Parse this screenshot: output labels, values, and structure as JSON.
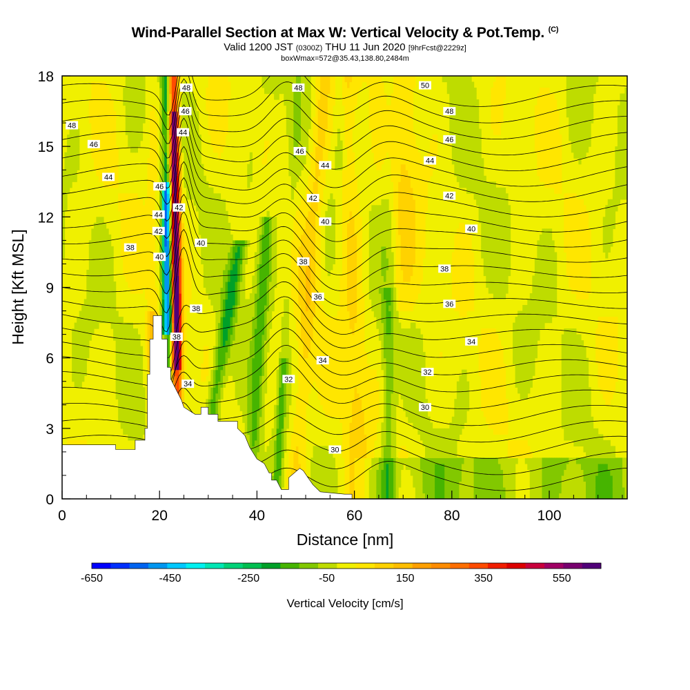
{
  "title_main": "Wind-Parallel Section at Max W: Vertical Velocity & Pot.Temp.",
  "title_mark": "(C)",
  "subtitle_a": "Valid 1200 JST",
  "subtitle_b": "(0300Z)",
  "subtitle_c": "THU 11 Jun 2020",
  "subtitle_d": "[9hrFcst@2229z]",
  "subtitle_line3": "boxWmax=572@35.43,138.80,2484m",
  "chart_data": {
    "type": "contour-section",
    "xlabel": "Distance [nm]",
    "ylabel": "Height [Kft MSL]",
    "xlim": [
      0,
      116
    ],
    "ylim": [
      0,
      18
    ],
    "x_ticks": [
      "0",
      "20",
      "40",
      "60",
      "80",
      "100"
    ],
    "x_tick_values": [
      0,
      20,
      40,
      60,
      80,
      100
    ],
    "y_ticks": [
      "0",
      "3",
      "6",
      "9",
      "12",
      "15",
      "18"
    ],
    "y_tick_values": [
      0,
      3,
      6,
      9,
      12,
      15,
      18
    ],
    "colorbar": {
      "title": "Vertical Velocity [cm/s]",
      "min": -650,
      "max": 650,
      "step": 50,
      "labels": [
        "-650",
        "-450",
        "-250",
        "-50",
        "150",
        "350",
        "550"
      ],
      "label_values": [
        -650,
        -450,
        -250,
        -50,
        150,
        350,
        550
      ],
      "colors": [
        "#0000ff",
        "#0030ff",
        "#0064f0",
        "#0096f0",
        "#00c8ff",
        "#00f0f0",
        "#00e6b4",
        "#00d278",
        "#00be50",
        "#00a028",
        "#46b400",
        "#82c800",
        "#bedc00",
        "#f0f000",
        "#ffe600",
        "#ffd200",
        "#ffbe00",
        "#ffa000",
        "#ff8c00",
        "#ff6e00",
        "#ff4b00",
        "#f01e00",
        "#dc0000",
        "#c8003c",
        "#a00064",
        "#78006e",
        "#500078"
      ]
    },
    "terrain_kft": [
      [
        0,
        2.3
      ],
      [
        10,
        2.3
      ],
      [
        11,
        2.3
      ],
      [
        11,
        2.1
      ],
      [
        15,
        2.1
      ],
      [
        15,
        2.5
      ],
      [
        17,
        2.5
      ],
      [
        17,
        3.0
      ],
      [
        17.5,
        3.0
      ],
      [
        17.5,
        5.3
      ],
      [
        18,
        5.3
      ],
      [
        18,
        6.8
      ],
      [
        18.7,
        6.8
      ],
      [
        18.7,
        7.8
      ],
      [
        20.5,
        7.8
      ],
      [
        20.5,
        6.8
      ],
      [
        21.6,
        6.8
      ],
      [
        21.6,
        5.6
      ],
      [
        22.3,
        5.6
      ],
      [
        22.3,
        5.1
      ],
      [
        24.5,
        4.2
      ],
      [
        25,
        3.9
      ],
      [
        27.3,
        3.6
      ],
      [
        28.5,
        3.6
      ],
      [
        28.5,
        3.9
      ],
      [
        30,
        3.9
      ],
      [
        30,
        3.6
      ],
      [
        32,
        3.6
      ],
      [
        32,
        3.3
      ],
      [
        36,
        3.3
      ],
      [
        36,
        3.0
      ],
      [
        37.5,
        2.7
      ],
      [
        38.5,
        2.2
      ],
      [
        40,
        1.7
      ],
      [
        41.5,
        1.5
      ],
      [
        42.5,
        1.1
      ],
      [
        43,
        1.1
      ],
      [
        43,
        0.8
      ],
      [
        44,
        0.8
      ],
      [
        45,
        0.4
      ],
      [
        46.5,
        0.4
      ],
      [
        46.5,
        0.9
      ],
      [
        48.8,
        1.3
      ],
      [
        49.5,
        1.2
      ],
      [
        50.5,
        0.9
      ],
      [
        51.5,
        0.6
      ],
      [
        53,
        0.3
      ],
      [
        58,
        0.2
      ],
      [
        59.5,
        0.2
      ],
      [
        59.5,
        0.0
      ]
    ],
    "theta_contour_labels": [
      {
        "x": 2,
        "y": 15.9,
        "t": "48"
      },
      {
        "x": 6.5,
        "y": 15.1,
        "t": "46"
      },
      {
        "x": 9.5,
        "y": 13.7,
        "t": "44"
      },
      {
        "x": 14,
        "y": 10.7,
        "t": "38"
      },
      {
        "x": 25.5,
        "y": 17.5,
        "t": "48"
      },
      {
        "x": 25.3,
        "y": 16.5,
        "t": "46"
      },
      {
        "x": 24.8,
        "y": 15.6,
        "t": "44"
      },
      {
        "x": 20,
        "y": 13.3,
        "t": "46"
      },
      {
        "x": 19.8,
        "y": 12.1,
        "t": "44"
      },
      {
        "x": 19.8,
        "y": 11.4,
        "t": "42"
      },
      {
        "x": 20,
        "y": 10.3,
        "t": "40"
      },
      {
        "x": 24,
        "y": 12.4,
        "t": "42"
      },
      {
        "x": 28.5,
        "y": 10.9,
        "t": "40"
      },
      {
        "x": 27.5,
        "y": 8.1,
        "t": "38"
      },
      {
        "x": 23.5,
        "y": 6.9,
        "t": "38"
      },
      {
        "x": 25.8,
        "y": 4.9,
        "t": "34"
      },
      {
        "x": 48.5,
        "y": 17.5,
        "t": "48"
      },
      {
        "x": 48.8,
        "y": 14.8,
        "t": "46"
      },
      {
        "x": 54,
        "y": 14.2,
        "t": "44"
      },
      {
        "x": 51.5,
        "y": 12.8,
        "t": "42"
      },
      {
        "x": 54,
        "y": 11.8,
        "t": "40"
      },
      {
        "x": 49.5,
        "y": 10.1,
        "t": "38"
      },
      {
        "x": 52.5,
        "y": 8.6,
        "t": "36"
      },
      {
        "x": 53.5,
        "y": 5.9,
        "t": "34"
      },
      {
        "x": 46.5,
        "y": 5.1,
        "t": "32"
      },
      {
        "x": 56,
        "y": 2.1,
        "t": "30"
      },
      {
        "x": 74.5,
        "y": 17.6,
        "t": "50"
      },
      {
        "x": 79.5,
        "y": 16.5,
        "t": "48"
      },
      {
        "x": 79.5,
        "y": 15.3,
        "t": "46"
      },
      {
        "x": 75.5,
        "y": 14.4,
        "t": "44"
      },
      {
        "x": 79.5,
        "y": 12.9,
        "t": "42"
      },
      {
        "x": 84,
        "y": 11.5,
        "t": "40"
      },
      {
        "x": 78.5,
        "y": 9.8,
        "t": "38"
      },
      {
        "x": 79.5,
        "y": 8.3,
        "t": "36"
      },
      {
        "x": 84,
        "y": 6.7,
        "t": "34"
      },
      {
        "x": 75,
        "y": 5.4,
        "t": "32"
      },
      {
        "x": 74.5,
        "y": 3.9,
        "t": "30"
      }
    ]
  }
}
